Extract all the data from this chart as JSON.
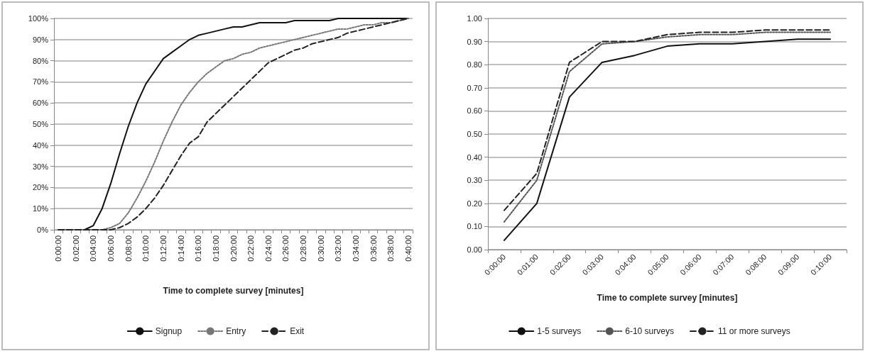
{
  "chart_data": [
    {
      "type": "line",
      "xlabel": "Time to complete survey [minutes]",
      "categories": [
        "0:00:00",
        null,
        "0:02:00",
        null,
        "0:04:00",
        null,
        "0:06:00",
        null,
        "0:08:00",
        null,
        "0:10:00",
        null,
        "0:12:00",
        null,
        "0:14:00",
        null,
        "0:16:00",
        null,
        "0:18:00",
        null,
        "0:20:00",
        null,
        "0:22:00",
        null,
        "0:24:00",
        null,
        "0:26:00",
        null,
        "0:28:00",
        null,
        "0:30:00",
        null,
        "0:32:00",
        null,
        "0:34:00",
        null,
        "0:36:00",
        null,
        "0:38:00",
        null,
        "0:40:00"
      ],
      "series": [
        {
          "name": "Signup",
          "color": "#111111",
          "line_style": "solid",
          "values": [
            0,
            0,
            0,
            0,
            2,
            10,
            22,
            36,
            49,
            60,
            69,
            75,
            81,
            84,
            87,
            90,
            92,
            93,
            94,
            95,
            96,
            96,
            97,
            98,
            98,
            98,
            98,
            99,
            99,
            99,
            99,
            99,
            100,
            100,
            100,
            100,
            100,
            100,
            100,
            100,
            100
          ]
        },
        {
          "name": "Entry",
          "color": "#777777",
          "line_style": "dotted",
          "values": [
            0,
            0,
            0,
            0,
            0,
            0,
            1,
            3,
            8,
            15,
            23,
            32,
            42,
            51,
            59,
            65,
            70,
            74,
            77,
            80,
            81,
            83,
            84,
            86,
            87,
            88,
            89,
            90,
            91,
            92,
            93,
            94,
            95,
            95,
            96,
            97,
            97,
            98,
            98,
            99,
            100
          ]
        },
        {
          "name": "Exit",
          "color": "#222222",
          "line_style": "dashed",
          "values": [
            0,
            0,
            0,
            0,
            0,
            0,
            0,
            1,
            3,
            6,
            10,
            15,
            21,
            28,
            35,
            41,
            44,
            51,
            55,
            59,
            63,
            67,
            71,
            75,
            79,
            81,
            83,
            85,
            86,
            88,
            89,
            90,
            91,
            93,
            94,
            95,
            96,
            97,
            98,
            99,
            100
          ]
        }
      ],
      "ylim": [
        0,
        100
      ],
      "yticks": [
        {
          "value": 0,
          "label": "0%"
        },
        {
          "value": 10,
          "label": "10%"
        },
        {
          "value": 20,
          "label": "20%"
        },
        {
          "value": 30,
          "label": "30%"
        },
        {
          "value": 40,
          "label": "40%"
        },
        {
          "value": 50,
          "label": "50%"
        },
        {
          "value": 60,
          "label": "60%"
        },
        {
          "value": 70,
          "label": "70%"
        },
        {
          "value": 80,
          "label": "80%"
        },
        {
          "value": 90,
          "label": "90%"
        },
        {
          "value": 100,
          "label": "100%"
        }
      ],
      "grid": "y",
      "legend": "bottom",
      "marker": "none"
    },
    {
      "type": "line",
      "xlabel": "Time to complete survey [minutes]",
      "categories": [
        "0:00:00",
        "0:01:00",
        "0:02:00",
        "0:03:00",
        "0:04:00",
        "0:05:00",
        "0:06:00",
        "0:07:00",
        "0:08:00",
        "0:09:00",
        "0:10:00"
      ],
      "series": [
        {
          "name": "1-5 surveys",
          "color": "#111111",
          "line_style": "solid",
          "values": [
            0.04,
            0.2,
            0.66,
            0.81,
            0.84,
            0.88,
            0.89,
            0.89,
            0.9,
            0.91,
            0.91
          ]
        },
        {
          "name": "6-10 surveys",
          "color": "#555555",
          "line_style": "dotted",
          "values": [
            0.12,
            0.3,
            0.77,
            0.89,
            0.9,
            0.92,
            0.93,
            0.93,
            0.94,
            0.94,
            0.94
          ]
        },
        {
          "name": "11 or more surveys",
          "color": "#222222",
          "line_style": "dashed",
          "values": [
            0.17,
            0.33,
            0.81,
            0.9,
            0.9,
            0.93,
            0.94,
            0.94,
            0.95,
            0.95,
            0.95
          ]
        }
      ],
      "ylim": [
        0,
        1
      ],
      "yticks": [
        {
          "value": 0,
          "label": "0.00"
        },
        {
          "value": 0.1,
          "label": "0.10"
        },
        {
          "value": 0.2,
          "label": "0.20"
        },
        {
          "value": 0.3,
          "label": "0.30"
        },
        {
          "value": 0.4,
          "label": "0.40"
        },
        {
          "value": 0.5,
          "label": "0.50"
        },
        {
          "value": 0.6,
          "label": "0.60"
        },
        {
          "value": 0.7,
          "label": "0.70"
        },
        {
          "value": 0.8,
          "label": "0.80"
        },
        {
          "value": 0.9,
          "label": "0.90"
        },
        {
          "value": 1,
          "label": "1.00"
        }
      ],
      "grid": "y",
      "legend": "bottom",
      "marker": "none"
    }
  ]
}
